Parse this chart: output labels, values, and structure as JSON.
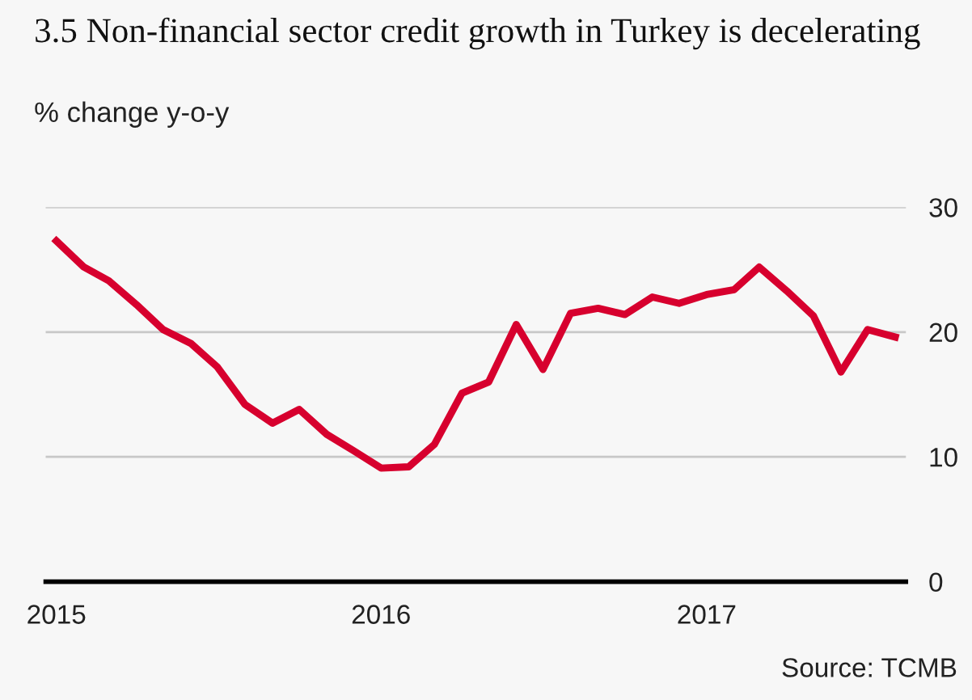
{
  "chart_data": {
    "type": "line",
    "title": "3.5 Non-financial sector credit growth in Turkey is decelerating",
    "subtitle": "% change y-o-y",
    "x": [
      "2015-01",
      "2015-02",
      "2015-03",
      "2015-04",
      "2015-05",
      "2015-06",
      "2015-07",
      "2015-08",
      "2015-09",
      "2015-10",
      "2015-11",
      "2015-12",
      "2016-01",
      "2016-02",
      "2016-03",
      "2016-04",
      "2016-05",
      "2016-06",
      "2016-07",
      "2016-08",
      "2016-09",
      "2016-10",
      "2016-11",
      "2016-12",
      "2017-01",
      "2017-02",
      "2017-03",
      "2017-04",
      "2017-05",
      "2017-06",
      "2017-07",
      "2017-08"
    ],
    "series": [
      {
        "color": "#d7002e",
        "values": [
          27.3,
          25.2,
          24.1,
          22.2,
          20.2,
          19.1,
          17.2,
          14.2,
          12.7,
          13.8,
          11.8,
          10.5,
          9.1,
          9.2,
          11.0,
          15.1,
          16.0,
          20.6,
          17.0,
          21.5,
          21.9,
          21.4,
          22.8,
          22.3,
          23.0,
          23.4,
          25.2,
          23.3,
          21.3,
          16.8,
          20.2,
          19.6
        ]
      }
    ],
    "xlim": [
      "2014-12-20",
      "2017-08-13"
    ],
    "xticks": [
      "2015",
      "2016",
      "2017"
    ],
    "ylim": [
      0,
      30
    ],
    "yticks": [
      0,
      10,
      20,
      30
    ],
    "grid": "y",
    "legend": false,
    "line_style": "solid",
    "marker": "none",
    "annotations": [
      "Source: TCMB"
    ]
  }
}
